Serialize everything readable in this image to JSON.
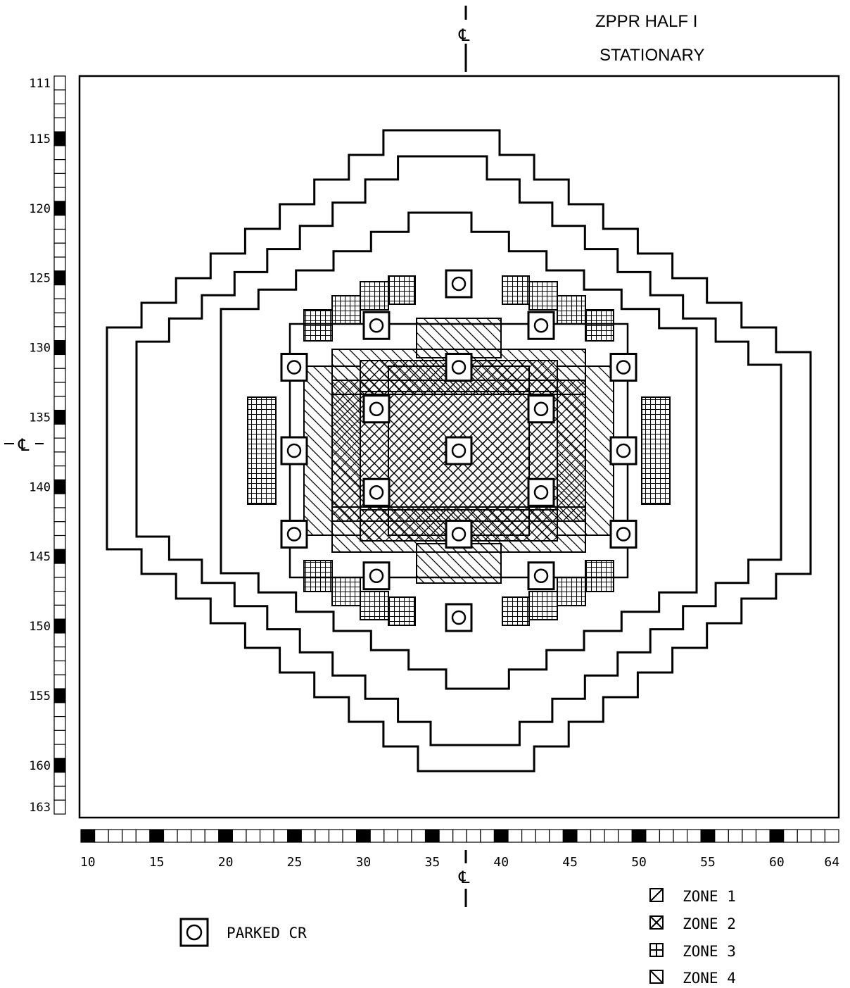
{
  "title": {
    "line1": "ZPPR HALF I",
    "line2": "STATIONARY"
  },
  "centerline_symbol": "℄",
  "centerline_labels": {
    "top": "℄",
    "left": "℄",
    "bottom": "℄"
  },
  "row_labels": [
    "111",
    "115",
    "120",
    "125",
    "130",
    "135",
    "140",
    "145",
    "150",
    "155",
    "160",
    "163"
  ],
  "row_range": [
    111,
    163
  ],
  "column_labels": [
    "10",
    "15",
    "20",
    "25",
    "30",
    "35",
    "40",
    "45",
    "50",
    "55",
    "60",
    "64"
  ],
  "column_range": [
    10,
    64
  ],
  "legend": {
    "parked_cr": "PARKED CR",
    "zones": [
      {
        "label": "ZONE 1",
        "pattern": "diagonal-forward"
      },
      {
        "label": "ZONE 2",
        "pattern": "crosshatch"
      },
      {
        "label": "ZONE 3",
        "pattern": "grid"
      },
      {
        "label": "ZONE 4",
        "pattern": "diagonal-back"
      }
    ]
  },
  "colors": {
    "line": "#000000",
    "background": "#ffffff"
  }
}
